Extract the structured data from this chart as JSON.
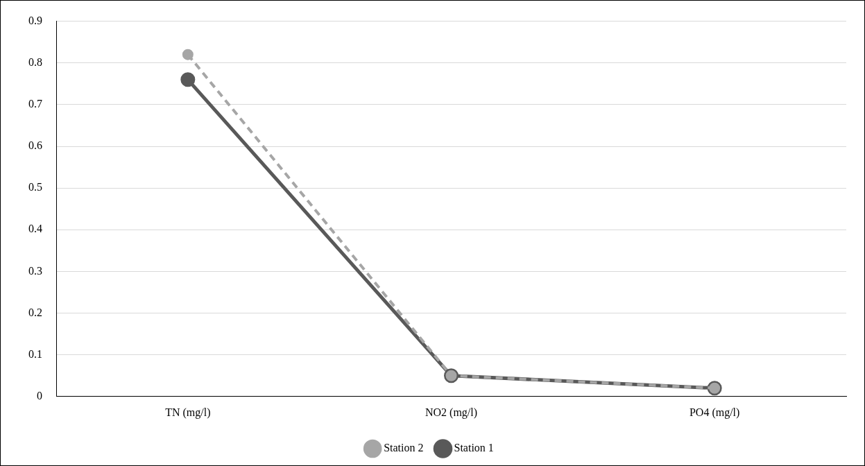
{
  "chart_data": {
    "type": "line",
    "categories": [
      "TN (mg/l)",
      "NO2 (mg/l)",
      "PO4 (mg/l)"
    ],
    "series": [
      {
        "name": "Station 1",
        "color": "#595959",
        "values": [
          0.76,
          0.05,
          0.02
        ],
        "line_style": "solid"
      },
      {
        "name": "Station 2",
        "color": "#a6a6a6",
        "values": [
          0.82,
          0.05,
          0.02
        ],
        "line_style": "dashed"
      }
    ],
    "ylim": [
      0,
      0.9
    ],
    "yticks": [
      0,
      0.1,
      0.2,
      0.3,
      0.4,
      0.5,
      0.6,
      0.7,
      0.8,
      0.9
    ],
    "grid": "y",
    "legend": "bottom",
    "marker": "circle"
  }
}
